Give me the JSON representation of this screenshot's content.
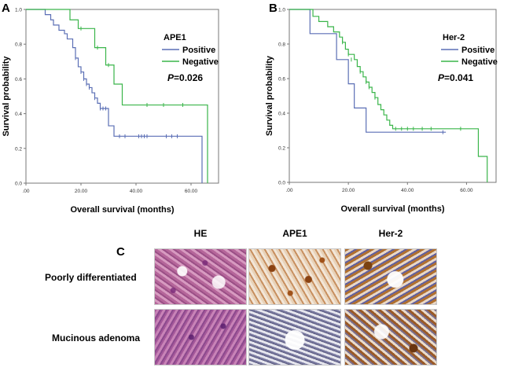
{
  "panels": {
    "a": "A",
    "b": "B",
    "c": "C"
  },
  "chart_data": [
    {
      "type": "line",
      "subtype": "kaplan-meier",
      "legend_title": "APE1",
      "legend_position": "top-right",
      "p_label": "P",
      "p_value": "=0.026",
      "xlabel": "Overall survival (months)",
      "ylabel": "Survival probability",
      "xlim": [
        0,
        70
      ],
      "ylim": [
        0,
        1.0
      ],
      "xticks": [
        ".00",
        "20.00",
        "40.00",
        "60.00"
      ],
      "yticks": [
        "0.0",
        "0.2",
        "0.4",
        "0.6",
        "0.8",
        "1.0"
      ],
      "series": [
        {
          "name": "Positive",
          "color": "#5b6fb5",
          "steps": [
            [
              0,
              1.0
            ],
            [
              7,
              0.97
            ],
            [
              9,
              0.94
            ],
            [
              10,
              0.91
            ],
            [
              12,
              0.88
            ],
            [
              14,
              0.86
            ],
            [
              15,
              0.83
            ],
            [
              17,
              0.78
            ],
            [
              18,
              0.72
            ],
            [
              19,
              0.67
            ],
            [
              20,
              0.64
            ],
            [
              21,
              0.6
            ],
            [
              22,
              0.57
            ],
            [
              23,
              0.55
            ],
            [
              24,
              0.52
            ],
            [
              25,
              0.49
            ],
            [
              26,
              0.46
            ],
            [
              27,
              0.43
            ],
            [
              30,
              0.33
            ],
            [
              32,
              0.27
            ],
            [
              64,
              0.0
            ]
          ],
          "censored": [
            [
              18,
              0.72
            ],
            [
              20,
              0.64
            ],
            [
              21,
              0.6
            ],
            [
              22,
              0.57
            ],
            [
              23,
              0.55
            ],
            [
              25,
              0.49
            ],
            [
              27,
              0.43
            ],
            [
              28,
              0.43
            ],
            [
              29,
              0.43
            ],
            [
              34,
              0.27
            ],
            [
              36,
              0.27
            ],
            [
              41,
              0.27
            ],
            [
              42,
              0.27
            ],
            [
              43,
              0.27
            ],
            [
              44,
              0.27
            ],
            [
              51,
              0.27
            ],
            [
              53,
              0.27
            ],
            [
              55,
              0.27
            ]
          ]
        },
        {
          "name": "Negative",
          "color": "#3ab54a",
          "steps": [
            [
              0,
              1.0
            ],
            [
              16,
              0.94
            ],
            [
              19,
              0.89
            ],
            [
              25,
              0.78
            ],
            [
              29,
              0.68
            ],
            [
              32,
              0.57
            ],
            [
              35,
              0.45
            ],
            [
              66,
              0.0
            ]
          ],
          "censored": [
            [
              20,
              0.89
            ],
            [
              26,
              0.78
            ],
            [
              30,
              0.68
            ],
            [
              44,
              0.45
            ],
            [
              50,
              0.45
            ],
            [
              57,
              0.45
            ]
          ]
        }
      ]
    },
    {
      "type": "line",
      "subtype": "kaplan-meier",
      "legend_title": "Her-2",
      "legend_position": "top-right",
      "p_label": "P",
      "p_value": "=0.041",
      "xlabel": "Overall survival (months)",
      "ylabel": "Survival probability",
      "xlim": [
        0,
        70
      ],
      "ylim": [
        0,
        1.0
      ],
      "xticks": [
        ".00",
        "20.00",
        "40.00",
        "60.00"
      ],
      "yticks": [
        "0.0",
        "0.2",
        "0.4",
        "0.6",
        "0.8",
        "1.0"
      ],
      "series": [
        {
          "name": "Positive",
          "color": "#5b6fb5",
          "steps": [
            [
              0,
              1.0
            ],
            [
              7,
              0.86
            ],
            [
              16,
              0.71
            ],
            [
              20,
              0.57
            ],
            [
              22,
              0.43
            ],
            [
              26,
              0.29
            ]
          ],
          "censored": [
            [
              52,
              0.29
            ]
          ],
          "end": 53
        },
        {
          "name": "Negative",
          "color": "#3ab54a",
          "steps": [
            [
              0,
              1.0
            ],
            [
              8,
              0.96
            ],
            [
              10,
              0.93
            ],
            [
              13,
              0.9
            ],
            [
              15,
              0.87
            ],
            [
              17,
              0.84
            ],
            [
              18,
              0.81
            ],
            [
              19,
              0.77
            ],
            [
              20,
              0.74
            ],
            [
              22,
              0.71
            ],
            [
              23,
              0.67
            ],
            [
              24,
              0.64
            ],
            [
              25,
              0.61
            ],
            [
              26,
              0.58
            ],
            [
              27,
              0.55
            ],
            [
              28,
              0.52
            ],
            [
              29,
              0.49
            ],
            [
              30,
              0.45
            ],
            [
              31,
              0.42
            ],
            [
              32,
              0.39
            ],
            [
              33,
              0.36
            ],
            [
              34,
              0.33
            ],
            [
              35,
              0.31
            ],
            [
              64,
              0.15
            ],
            [
              67,
              0.0
            ]
          ],
          "censored": [
            [
              18,
              0.81
            ],
            [
              20,
              0.74
            ],
            [
              21,
              0.71
            ],
            [
              24,
              0.64
            ],
            [
              26,
              0.58
            ],
            [
              27,
              0.55
            ],
            [
              29,
              0.49
            ],
            [
              36,
              0.31
            ],
            [
              38,
              0.31
            ],
            [
              40,
              0.31
            ],
            [
              42,
              0.31
            ],
            [
              45,
              0.31
            ],
            [
              48,
              0.31
            ],
            [
              58,
              0.31
            ]
          ]
        }
      ]
    }
  ],
  "histology": {
    "columns": [
      "HE",
      "APE1",
      "Her-2"
    ],
    "rows": [
      "Poorly differentiated",
      "Mucinous adenoma"
    ]
  }
}
